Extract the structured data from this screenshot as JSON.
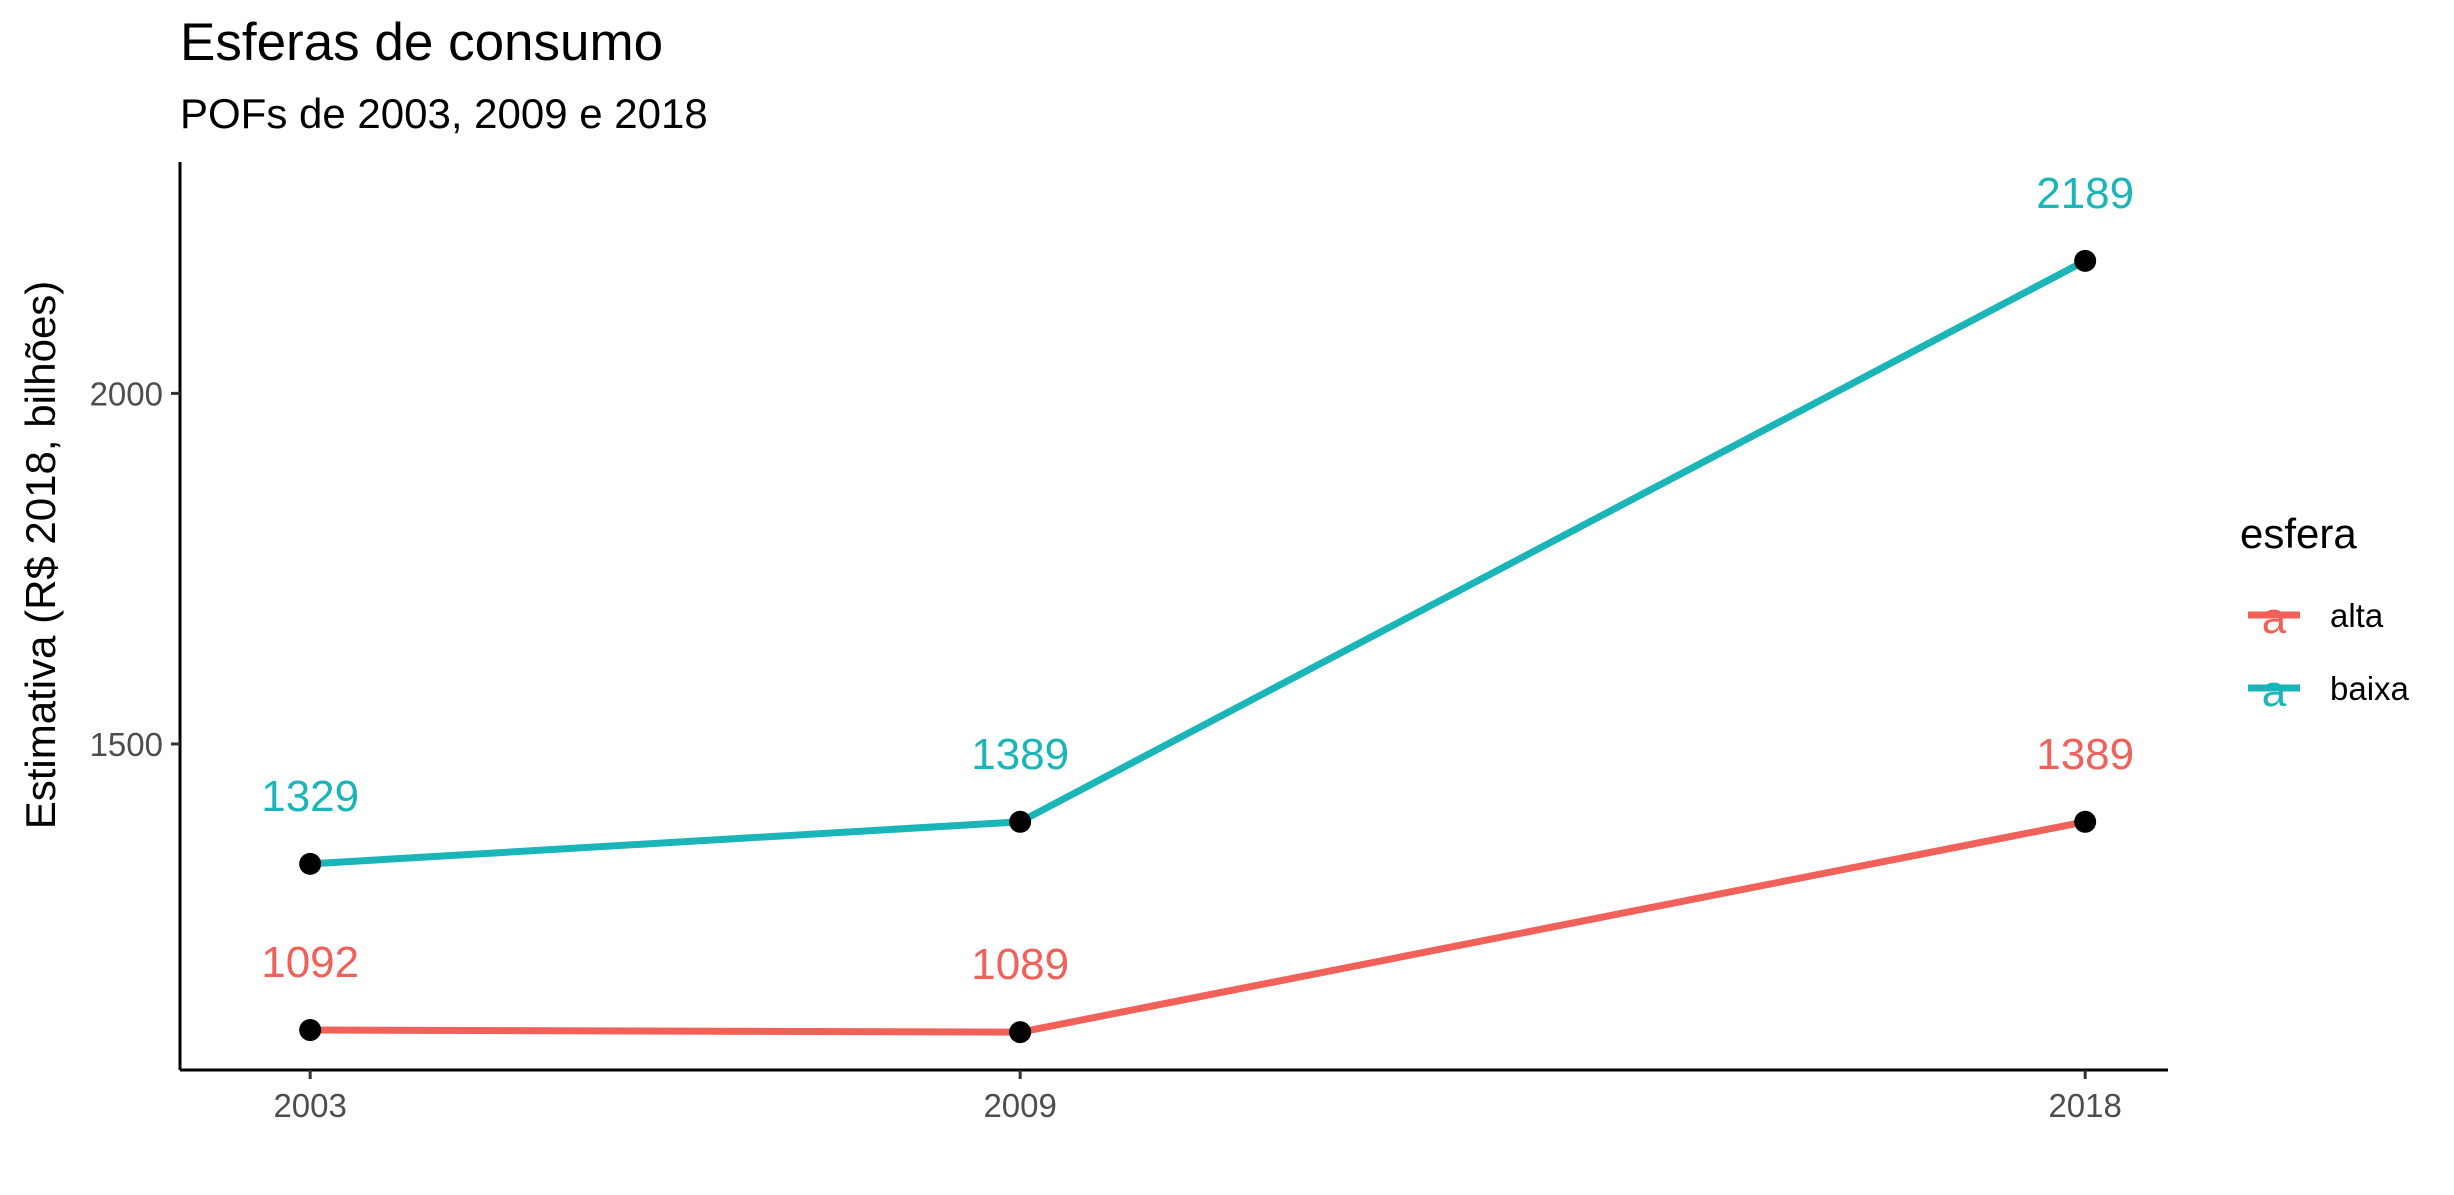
{
  "chart_data": {
    "type": "line",
    "title": "Esferas de consumo",
    "subtitle": "POFs de 2003, 2009 e 2018",
    "xlabel": "",
    "ylabel": "Estimativa (R$ 2018, bilhões)",
    "x": [
      2003,
      2009,
      2018
    ],
    "x_tick_labels": [
      "2003",
      "2009",
      "2018"
    ],
    "y_ticks": [
      1500,
      2000
    ],
    "y_tick_labels": [
      "1500",
      "2000"
    ],
    "xlim": [
      2001.9,
      2018.7
    ],
    "ylim": [
      1035,
      2330
    ],
    "grid": false,
    "legend": {
      "title": "esfera",
      "position": "right",
      "key_glyph": "a"
    },
    "series": [
      {
        "name": "alta",
        "color": "#F0615A",
        "values": [
          1092,
          1089,
          1389
        ],
        "labels": [
          "1092",
          "1089",
          "1389"
        ]
      },
      {
        "name": "baixa",
        "color": "#1AB5B8",
        "values": [
          1329,
          1389,
          2189
        ],
        "labels": [
          "1329",
          "1389",
          "2189"
        ]
      }
    ],
    "point_color": "#000000"
  }
}
